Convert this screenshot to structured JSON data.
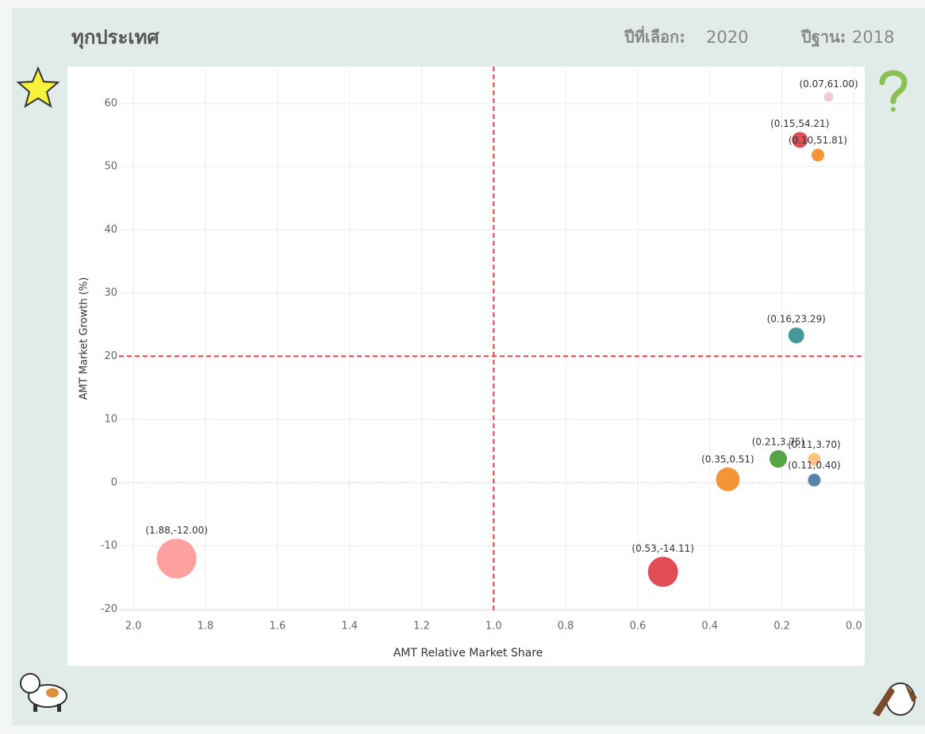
{
  "header": {
    "title": "ทุกประเทศ",
    "selected_label": "ปีที่เลือก:",
    "selected_year": "2020",
    "base_label": "ปีฐาน:",
    "base_year": "2018"
  },
  "chart_data": {
    "type": "scatter",
    "x_label": "AMT Relative Market Share",
    "y_label": "AMT Market Growth (%)",
    "x": [
      1.88,
      0.53,
      0.35,
      0.21,
      0.11,
      0.11,
      0.16,
      0.15,
      0.1,
      0.07
    ],
    "values": [
      -12.0,
      -14.11,
      0.51,
      3.75,
      3.7,
      0.4,
      23.29,
      54.21,
      51.81,
      61.0
    ],
    "sizes": [
      625,
      361,
      225,
      121,
      64,
      64,
      100,
      100,
      64,
      36
    ],
    "colors": [
      "#ff9b9b",
      "#e0434c",
      "#f28e2b",
      "#4e9f3d",
      "#ffbe7d",
      "#4e79a7",
      "#3a9690",
      "#e0434c",
      "#f28e2b",
      "#f9c3d1"
    ],
    "value_labels": [
      "(1.88,-12.00)",
      "(0.53,-14.11)",
      "(0.35,0.51)",
      "(0.21,3.75)",
      "(0.11,3.70)",
      "(0.11,0.40)",
      "(0.16,23.29)",
      "(0.15,54.21)",
      "(0.10,51.81)",
      "(0.07,61.00)"
    ],
    "xlim": [
      2.04,
      -0.03
    ],
    "ylim": [
      -20.2,
      65.8
    ],
    "xticks": [
      {
        "value": 2,
        "label": "2.0"
      },
      1.8,
      1.6,
      1.4,
      1.2,
      {
        "value": 1,
        "label": "1.0"
      },
      0.8,
      0.6,
      0.4,
      0.2,
      {
        "value": 0,
        "label": "0.0"
      }
    ],
    "yticks": [
      -20,
      -10,
      0,
      10,
      20,
      30,
      40,
      50,
      60
    ],
    "reference_lines": {
      "x": 1,
      "y": 20,
      "color": "#e0434c"
    },
    "grid": true
  }
}
